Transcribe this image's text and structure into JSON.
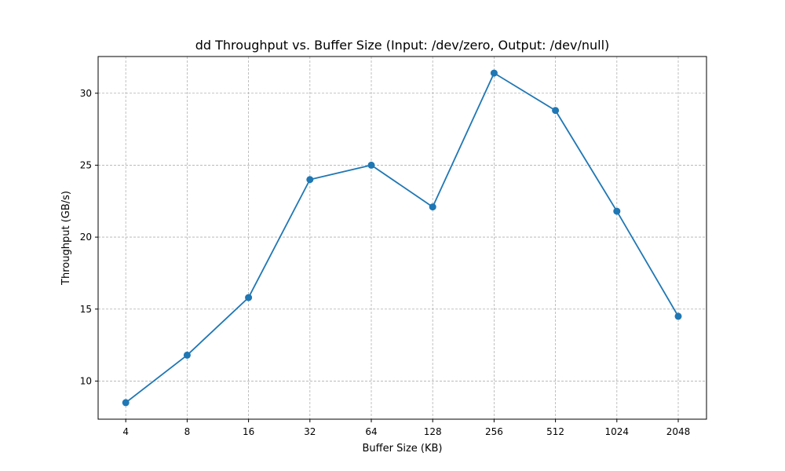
{
  "chart_data": {
    "type": "line",
    "title": "dd Throughput vs. Buffer Size (Input: /dev/zero, Output: /dev/null)",
    "xlabel": "Buffer Size (KB)",
    "ylabel": "Throughput (GB/s)",
    "categories": [
      "4",
      "8",
      "16",
      "32",
      "64",
      "128",
      "256",
      "512",
      "1024",
      "2048"
    ],
    "series": [
      {
        "values": [
          8.5,
          11.8,
          15.8,
          24.0,
          25.0,
          22.1,
          31.4,
          28.8,
          21.8,
          14.5
        ],
        "color": "#1f77b4",
        "marker": "circle"
      }
    ],
    "yticks": [
      10,
      15,
      20,
      25,
      30
    ],
    "ylim": [
      7.35,
      32.55
    ],
    "grid": true,
    "grid_style": "dashed",
    "legend": false
  }
}
